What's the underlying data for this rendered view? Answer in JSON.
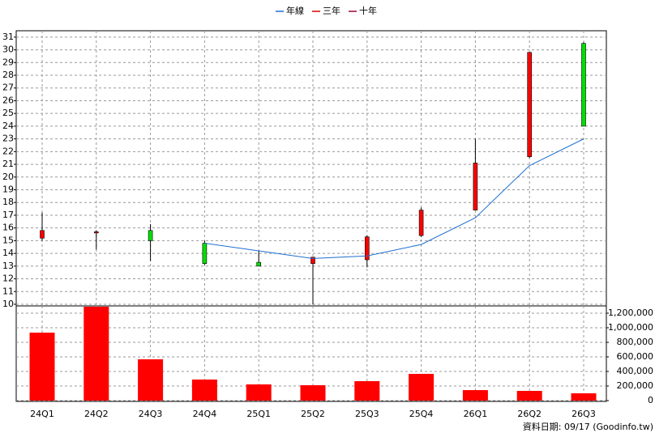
{
  "chart_data": [
    {
      "type": "candlestick",
      "categories": [
        "24Q1",
        "24Q2",
        "24Q3",
        "24Q4",
        "25Q1",
        "25Q2",
        "25Q3",
        "25Q4",
        "26Q1",
        "26Q2",
        "26Q3"
      ],
      "open": [
        15.2,
        15.7,
        15.8,
        14.8,
        13.3,
        13.2,
        13.5,
        15.4,
        17.4,
        21.6,
        30.5
      ],
      "high": [
        17.2,
        15.8,
        16.3,
        15.0,
        14.2,
        13.7,
        15.4,
        17.6,
        23.0,
        29.8,
        30.6
      ],
      "low": [
        15.0,
        14.3,
        13.4,
        13.1,
        13.0,
        10.0,
        12.9,
        15.3,
        17.4,
        21.5,
        24.0
      ],
      "close": [
        15.8,
        15.7,
        15.0,
        13.2,
        13.0,
        13.7,
        15.3,
        17.4,
        21.1,
        29.8,
        24.0
      ],
      "up_color": "#ff0000",
      "down_color": "#00e000",
      "series": [
        {
          "name": "年線",
          "color": "#1f6fd0",
          "values": [
            null,
            null,
            null,
            14.8,
            14.2,
            13.6,
            13.8,
            14.7,
            16.8,
            20.9,
            23.0
          ]
        }
      ],
      "legend": [
        {
          "name": "年線",
          "color": "#1f6fd0"
        },
        {
          "name": "三年",
          "color": "#e00000"
        },
        {
          "name": "十年",
          "color": "#a00040"
        }
      ],
      "ylim": [
        10,
        31.5
      ],
      "yticks": [
        10,
        11,
        12,
        13,
        14,
        15,
        16,
        17,
        18,
        19,
        20,
        21,
        22,
        23,
        24,
        25,
        26,
        27,
        28,
        29,
        30,
        31
      ],
      "grid": true
    },
    {
      "type": "bar",
      "categories": [
        "24Q1",
        "24Q2",
        "24Q3",
        "24Q4",
        "25Q1",
        "25Q2",
        "25Q3",
        "25Q4",
        "26Q1",
        "26Q2",
        "26Q3"
      ],
      "values": [
        933000,
        1289000,
        567000,
        289000,
        222000,
        211000,
        267000,
        367000,
        144000,
        133000,
        100000
      ],
      "color": "#ff0000",
      "ylim": [
        0,
        1300000
      ],
      "yticks": [
        0,
        {
          "value": 200000,
          "label": "200,000"
        },
        {
          "value": 400000,
          "label": "400,000"
        },
        {
          "value": 600000,
          "label": "600,000"
        },
        {
          "value": 800000,
          "label": "800,000"
        },
        {
          "value": 1000000,
          "label": "1,000,000"
        },
        {
          "value": 1200000,
          "label": "1,200,000"
        }
      ],
      "grid": true
    }
  ],
  "footer": "資料日期: 09/17  (Goodinfo.tw)"
}
